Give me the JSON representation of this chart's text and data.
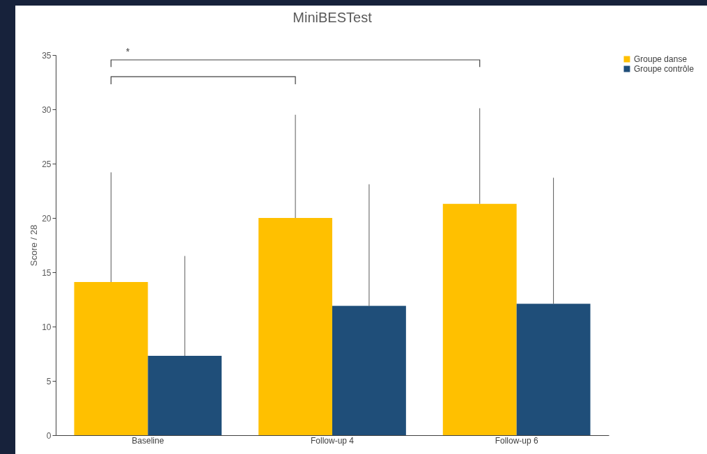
{
  "chart_data": {
    "type": "bar",
    "title": "MiniBESTest",
    "ylabel": "Score / 28",
    "categories": [
      "Baseline",
      "Follow-up 4",
      "Follow-up 6"
    ],
    "series": [
      {
        "name": "Groupe danse",
        "color": "#ffc000",
        "values": [
          14.1,
          20,
          21.3
        ],
        "errors": [
          [
            14.1,
            24.2
          ],
          [
            20,
            29.5
          ],
          [
            21.3,
            30.1
          ]
        ]
      },
      {
        "name": "Groupe contrôle",
        "color": "#1f4e79",
        "values": [
          7.3,
          11.9,
          12.1
        ],
        "errors": [
          [
            7.3,
            16.5
          ],
          [
            11.9,
            23.1
          ],
          [
            12.1,
            23.7
          ]
        ]
      }
    ],
    "ylim": [
      0,
      35
    ],
    "yticks": [
      0,
      5,
      10,
      15,
      20,
      25,
      30,
      35
    ],
    "grid": false,
    "legend": "right",
    "annotations": [
      "*"
    ]
  }
}
